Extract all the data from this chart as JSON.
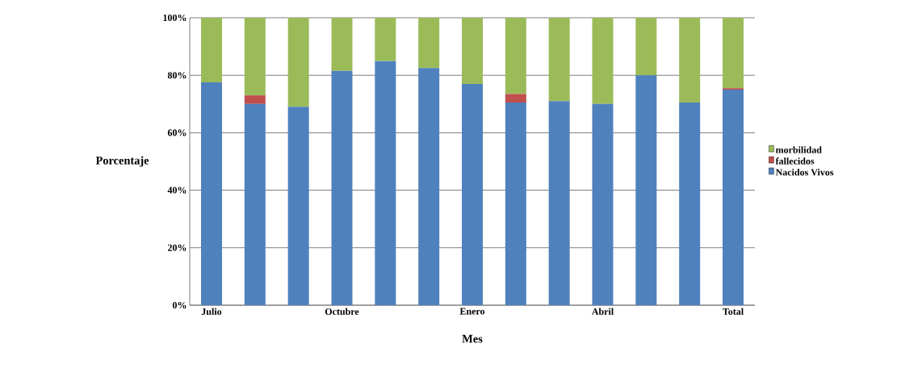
{
  "chart_data": {
    "type": "bar",
    "stacked": true,
    "xlabel": "Mes",
    "ylabel": "Porcentaje",
    "categories": [
      "Julio",
      null,
      null,
      "Octubre",
      null,
      null,
      "Enero",
      null,
      null,
      "Abril",
      null,
      null,
      "Total"
    ],
    "series": [
      {
        "name": "Nacidos Vivos",
        "color": "#4f81bd",
        "values": [
          77.5,
          70,
          69,
          81.5,
          85,
          82.5,
          77,
          70.5,
          71,
          70,
          80,
          70.5,
          75
        ]
      },
      {
        "name": "fallecidos",
        "color": "#c0504d",
        "values": [
          0,
          3,
          0,
          0,
          0,
          0,
          0,
          3,
          0,
          0,
          0,
          0,
          0.5
        ]
      },
      {
        "name": "morbilidad",
        "color": "#9bbb59",
        "values": [
          22.5,
          27,
          31,
          18.5,
          15,
          17.5,
          23,
          26.5,
          29,
          30,
          20,
          29.5,
          24.5
        ]
      }
    ],
    "ylim": [
      0,
      100
    ],
    "yticks": [
      {
        "value": 0,
        "label": "0%"
      },
      {
        "value": 20,
        "label": "20%"
      },
      {
        "value": 40,
        "label": "40%"
      },
      {
        "value": 60,
        "label": "60%"
      },
      {
        "value": 80,
        "label": "80%"
      },
      {
        "value": 100,
        "label": "100%"
      }
    ],
    "grid": "y",
    "legend": "right"
  }
}
